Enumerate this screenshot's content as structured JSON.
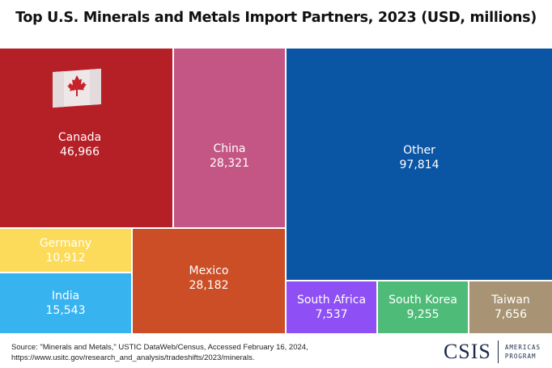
{
  "chart_data": {
    "type": "treemap",
    "title": "Top U.S. Minerals and Metals Import Partners, 2023 (USD, millions)",
    "items": [
      {
        "name": "Canada",
        "value": 46966,
        "label": "46,966",
        "color": "#b51f26"
      },
      {
        "name": "China",
        "value": 28321,
        "label": "28,321",
        "color": "#c45685"
      },
      {
        "name": "Other",
        "value": 97814,
        "label": "97,814",
        "color": "#0b55a5"
      },
      {
        "name": "Germany",
        "value": 10912,
        "label": "10,912",
        "color": "#fddb5a"
      },
      {
        "name": "India",
        "value": 15543,
        "label": "15,543",
        "color": "#37b3f0"
      },
      {
        "name": "Mexico",
        "value": 28182,
        "label": "28,182",
        "color": "#cb4e26"
      },
      {
        "name": "South Africa",
        "value": 7537,
        "label": "7,537",
        "color": "#8e4ff5"
      },
      {
        "name": "South Korea",
        "value": 9255,
        "label": "9,255",
        "color": "#4fbb78"
      },
      {
        "name": "Taiwan",
        "value": 7656,
        "label": "7,656",
        "color": "#a89474"
      }
    ]
  },
  "footer": {
    "source_line1": "Source: \"Minerals and Metals,\" USTIC DataWeb/Census, Accessed February 16, 2024,",
    "source_line2": "https://www.usitc.gov/research_and_analysis/tradeshifts/2023/minerals.",
    "logo": "CSIS",
    "program_line1": "AMERICAS",
    "program_line2": "PROGRAM"
  }
}
